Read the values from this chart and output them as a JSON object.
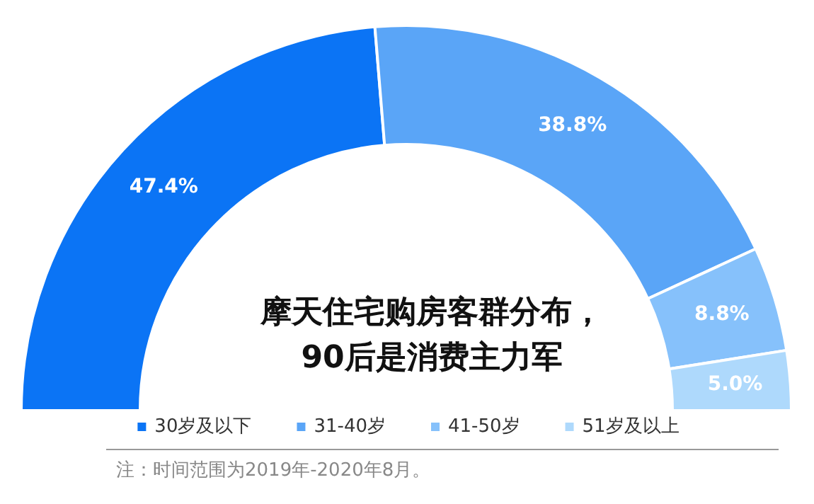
{
  "chart_data": {
    "type": "donut",
    "title": "摩天住宅购房客群分布，90后是消费主力军",
    "categories": [
      "30岁及以下",
      "31-40岁",
      "41-50岁",
      "51岁及以上"
    ],
    "values": [
      47.4,
      38.8,
      8.8,
      5.0
    ],
    "colors": [
      "#0b74f5",
      "#5aa5f7",
      "#86c1fb",
      "#aed9fc"
    ],
    "value_labels": [
      "47.4%",
      "38.8%",
      "8.8%",
      "5.0%"
    ],
    "legend": "bottom",
    "annotations": [
      "注：时间范围为2019年-2020年8月。"
    ]
  }
}
